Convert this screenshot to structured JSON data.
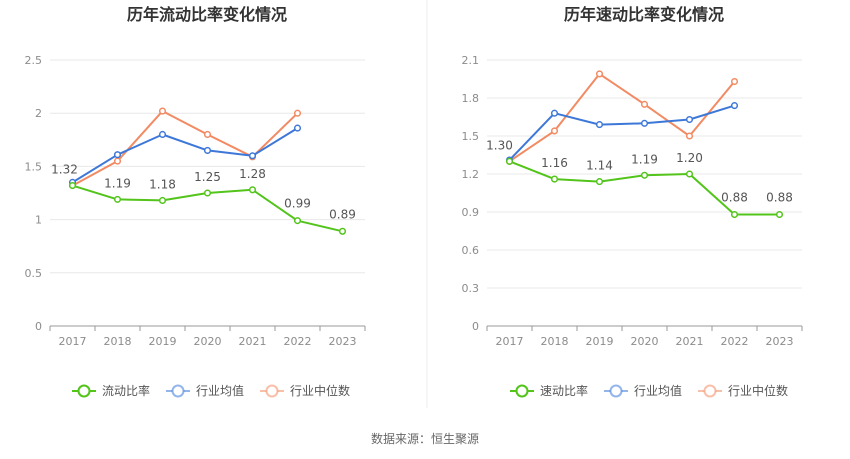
{
  "chart_data": [
    {
      "type": "line",
      "title": "历年流动比率变化情况",
      "categories": [
        "2017",
        "2018",
        "2019",
        "2020",
        "2021",
        "2022",
        "2023"
      ],
      "ylim": [
        0,
        2.5
      ],
      "yticks": [
        "0",
        "0.5",
        "1",
        "1.5",
        "2",
        "2.5"
      ],
      "grid": true,
      "legend_position": "bottom",
      "series": [
        {
          "name": "流动比率",
          "color": "#52c41a",
          "values": [
            1.32,
            1.19,
            1.18,
            1.25,
            1.28,
            0.99,
            0.89
          ],
          "labels": [
            "1.32",
            "1.19",
            "1.18",
            "1.25",
            "1.28",
            "0.99",
            "0.89"
          ]
        },
        {
          "name": "行业均值",
          "color": "#3d78d8",
          "values": [
            1.35,
            1.61,
            1.8,
            1.65,
            1.6,
            1.86,
            null
          ]
        },
        {
          "name": "行业中位数",
          "color": "#f28a63",
          "values": [
            1.32,
            1.55,
            2.02,
            1.8,
            1.59,
            2.0,
            null
          ]
        }
      ]
    },
    {
      "type": "line",
      "title": "历年速动比率变化情况",
      "categories": [
        "2017",
        "2018",
        "2019",
        "2020",
        "2021",
        "2022",
        "2023"
      ],
      "ylim": [
        0,
        2.1
      ],
      "yticks": [
        "0",
        "0.3",
        "0.6",
        "0.9",
        "1.2",
        "1.5",
        "1.8",
        "2.1"
      ],
      "grid": true,
      "legend_position": "bottom",
      "series": [
        {
          "name": "速动比率",
          "color": "#52c41a",
          "values": [
            1.3,
            1.16,
            1.14,
            1.19,
            1.2,
            0.88,
            0.88
          ],
          "labels": [
            "1.30",
            "1.16",
            "1.14",
            "1.19",
            "1.20",
            "0.88",
            "0.88"
          ]
        },
        {
          "name": "行业均值",
          "color": "#3d78d8",
          "values": [
            1.31,
            1.68,
            1.59,
            1.6,
            1.63,
            1.74,
            null
          ]
        },
        {
          "name": "行业中位数",
          "color": "#f28a63",
          "values": [
            1.3,
            1.54,
            1.99,
            1.75,
            1.5,
            1.93,
            null
          ]
        }
      ]
    }
  ],
  "source": "数据来源：恒生聚源"
}
